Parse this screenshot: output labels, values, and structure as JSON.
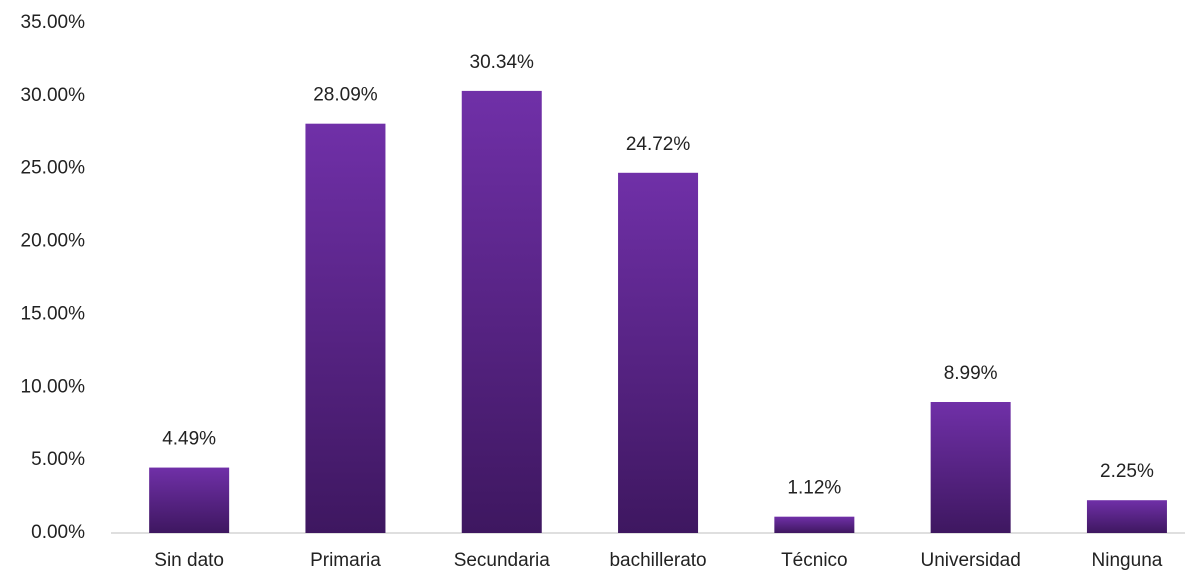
{
  "chart_data": {
    "type": "bar",
    "categories": [
      "Sin dato",
      "Primaria",
      "Secundaria",
      "bachillerato",
      "Técnico",
      "Universidad",
      "Ninguna"
    ],
    "values": [
      4.49,
      28.09,
      30.34,
      24.72,
      1.12,
      8.99,
      2.25
    ],
    "value_labels": [
      "4.49%",
      "28.09%",
      "30.34%",
      "24.72%",
      "1.12%",
      "8.99%",
      "2.25%"
    ],
    "color": "#7030a0",
    "ylim": [
      0,
      35
    ],
    "yticks": [
      {
        "value": 0,
        "label": "0.00%"
      },
      {
        "value": 5,
        "label": "5.00%"
      },
      {
        "value": 10,
        "label": "10.00%"
      },
      {
        "value": 15,
        "label": "15.00%"
      },
      {
        "value": 20,
        "label": "20.00%"
      },
      {
        "value": 25,
        "label": "25.00%"
      },
      {
        "value": 30,
        "label": "30.00%"
      },
      {
        "value": 35,
        "label": "35.00%"
      }
    ],
    "grid": false
  }
}
